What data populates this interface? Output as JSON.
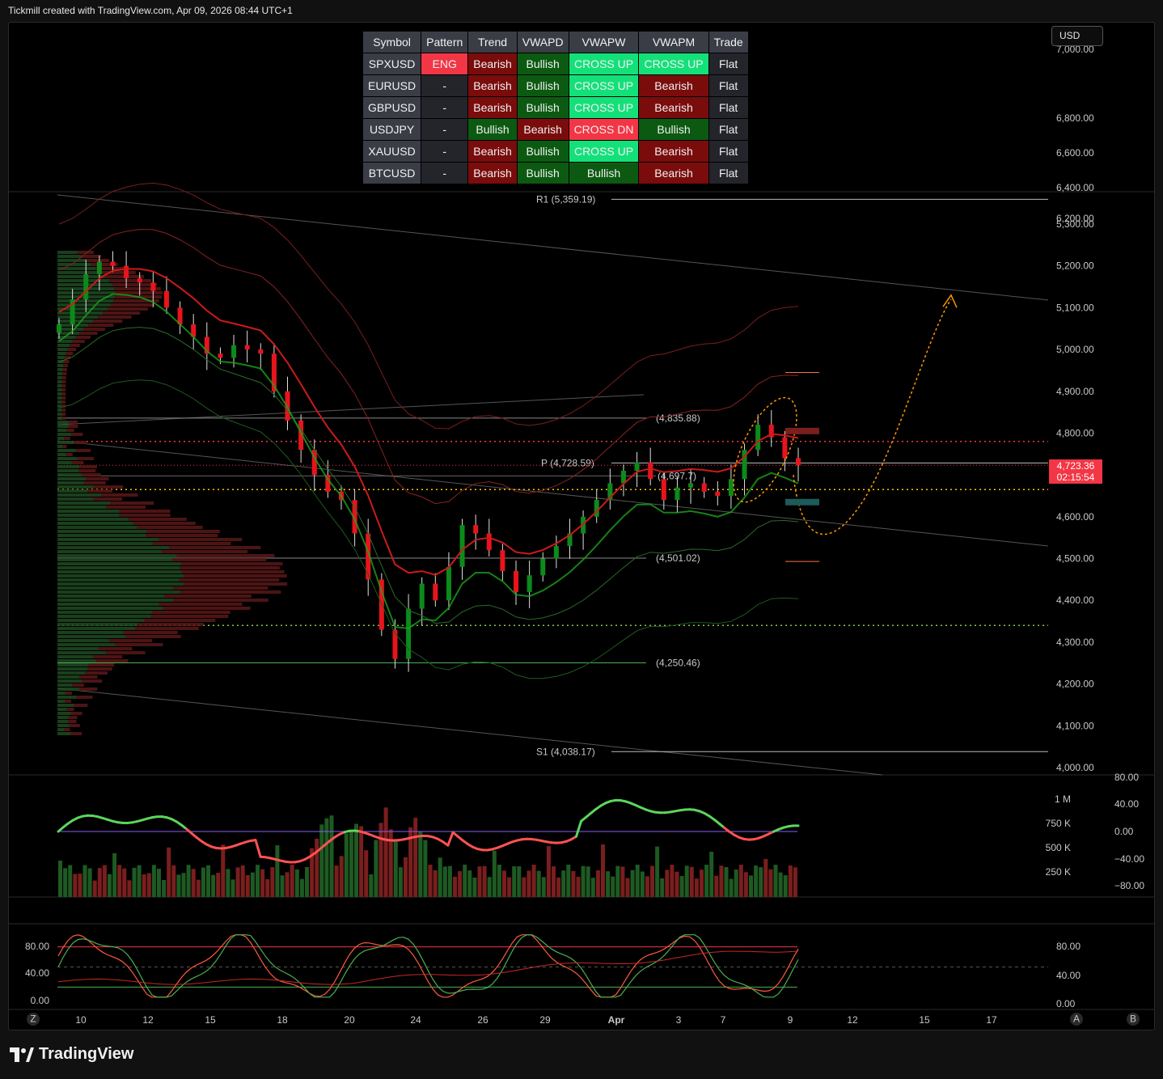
{
  "header": {
    "text": "Tickmill created with TradingView.com, Apr 09, 2026 08:44 UTC+1"
  },
  "currency_button": {
    "label": "USD"
  },
  "price_badge": {
    "price": "4,723.36",
    "countdown": "02:15:54"
  },
  "brand": {
    "name": "TradingView"
  },
  "signal_table": {
    "headers": [
      "Symbol",
      "Pattern",
      "Trend",
      "VWAPD",
      "VWAPW",
      "VWAPM",
      "Trade"
    ],
    "rows": [
      [
        "SPXUSD",
        "ENG",
        "Bearish",
        "Bullish",
        "CROSS UP",
        "CROSS UP",
        "Flat"
      ],
      [
        "EURUSD",
        "-",
        "Bearish",
        "Bullish",
        "CROSS UP",
        "Bearish",
        "Flat"
      ],
      [
        "GBPUSD",
        "-",
        "Bearish",
        "Bullish",
        "CROSS UP",
        "Bearish",
        "Flat"
      ],
      [
        "USDJPY",
        "-",
        "Bullish",
        "Bearish",
        "CROSS DN",
        "Bullish",
        "Flat"
      ],
      [
        "XAUUSD",
        "-",
        "Bearish",
        "Bullish",
        "CROSS UP",
        "Bearish",
        "Flat"
      ],
      [
        "BTCUSD",
        "-",
        "Bearish",
        "Bullish",
        "Bullish",
        "Bearish",
        "Flat"
      ]
    ]
  },
  "colors": {
    "bull": "#0c8a1a",
    "bear": "#e8141c",
    "up": "#14e07a",
    "dn": "#f23645",
    "projection": "#ff9800",
    "volume_bull": "#1e5a22",
    "volume_bear": "#7a1e1e"
  },
  "chart_data": [
    {
      "type": "candlestick",
      "panel": "price",
      "y_axis_ticks": [
        "7,000.00",
        "6,800.00",
        "6,600.00",
        "6,400.00",
        "6,200.00",
        "5,300.00",
        "5,200.00",
        "5,100.00",
        "5,000.00",
        "4,900.00",
        "4,800.00",
        "4,700.00",
        "4,600.00",
        "4,500.00",
        "4,400.00",
        "4,300.00",
        "4,200.00",
        "4,100.00",
        "4,000.00"
      ],
      "x_axis_ticks": [
        "10",
        "12",
        "15",
        "18",
        "20",
        "24",
        "26",
        "29",
        "Apr",
        "3",
        "7",
        "9",
        "12",
        "15",
        "17"
      ],
      "levels": [
        {
          "label": "R1 (5,359.19)",
          "value": 5359.19
        },
        {
          "label": "(4,835.88)",
          "value": 4835.88
        },
        {
          "label": "P (4,728.59)",
          "value": 4728.59
        },
        {
          "label": "(4,697.7)",
          "value": 4697.7
        },
        {
          "label": "(4,501.02)",
          "value": 4501.02
        },
        {
          "label": "(4,250.46)",
          "value": 4250.46
        },
        {
          "label": "S1 (4,038.17)",
          "value": 4038.17
        }
      ],
      "closes_approx": [
        5060,
        5120,
        5180,
        5210,
        5200,
        5170,
        5160,
        5140,
        5100,
        5060,
        5030,
        4990,
        4980,
        5010,
        5000,
        4990,
        4900,
        4830,
        4760,
        4700,
        4660,
        4640,
        4560,
        4450,
        4330,
        4260,
        4380,
        4440,
        4400,
        4480,
        4580,
        4560,
        4520,
        4470,
        4420,
        4460,
        4500,
        4530,
        4560,
        4600,
        4640,
        4680,
        4710,
        4730,
        4690,
        4640,
        4670,
        4680,
        4660,
        4650,
        4690,
        4760,
        4820,
        4790,
        4740,
        4723
      ]
    },
    {
      "type": "bar+line",
      "panel": "volume",
      "y_axis_ticks": [
        "1 M",
        "750 K",
        "500 K",
        "250 K"
      ],
      "oscillator_ticks": [
        "80.00",
        "40.00",
        "0.00",
        "−40.00",
        "−80.00"
      ]
    },
    {
      "type": "line",
      "panel": "stochastic",
      "y_axis_ticks_left": [
        "80.00",
        "40.00",
        "0.00"
      ],
      "y_axis_ticks_right": [
        "80.00",
        "40.00",
        "0.00"
      ],
      "axis_buttons": [
        "Z",
        "A",
        "B"
      ]
    }
  ]
}
